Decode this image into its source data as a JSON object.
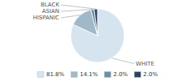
{
  "chart_data": {
    "type": "pie",
    "categories": [
      "WHITE",
      "HISPANIC",
      "ASIAN",
      "BLACK"
    ],
    "values": [
      81.8,
      14.1,
      2.0,
      2.0
    ],
    "value_labels": [
      "81.8%",
      "14.1%",
      "2.0%",
      "2.0%"
    ],
    "colors": [
      "#d6e4ef",
      "#a0b8c8",
      "#6890a8",
      "#2b4560"
    ],
    "legend": "bottom"
  }
}
